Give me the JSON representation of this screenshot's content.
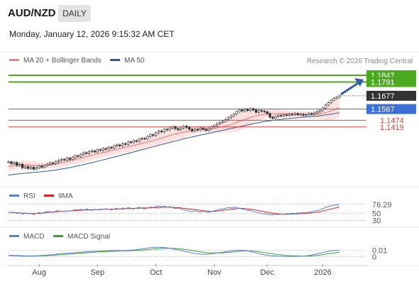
{
  "header": {
    "title": "AUD/NZD",
    "period_badge": "DAILY",
    "datetime": "Monday, January 12, 2026 9:15:32 AM CET"
  },
  "main_legend": {
    "items": [
      {
        "label": "MA 20 + Bollinger Bands",
        "color": "#f08080"
      },
      {
        "label": "MA 50",
        "color": "#2e5a96"
      }
    ],
    "credit": "Research © 2026 Trading Central"
  },
  "rsi_legend": {
    "items": [
      {
        "label": "RSI",
        "color": "#5a7fd4"
      },
      {
        "label": "9MA",
        "color": "#d42020"
      }
    ]
  },
  "macd_legend": {
    "items": [
      {
        "label": "MACD",
        "color": "#5a7fd4"
      },
      {
        "label": "MACD Signal",
        "color": "#3aa032"
      }
    ]
  },
  "chart_data": {
    "type": "candlestick",
    "instrument": "AUD/NZD",
    "timeframe": "DAILY",
    "x_labels": [
      "Aug",
      "Sep",
      "Oct",
      "Nov",
      "Dec",
      "2026"
    ],
    "price_panel": {
      "ylim": [
        1.1,
        1.19
      ],
      "last_price": 1.1677,
      "levels": [
        {
          "value": 1.1847,
          "label": "1.1847",
          "color": "#4caa1e",
          "kind": "resistance-target"
        },
        {
          "value": 1.1791,
          "label": "1.1791",
          "color": "#4caa1e",
          "kind": "resistance"
        },
        {
          "value": 1.1677,
          "label": "1.1677",
          "color": "#333333",
          "kind": "last-price"
        },
        {
          "value": 1.1567,
          "label": "1.1567",
          "color": "#3a6fd8",
          "kind": "pivot"
        },
        {
          "value": 1.1474,
          "label": "1.1474",
          "color": "#e04040",
          "kind": "support"
        },
        {
          "value": 1.1419,
          "label": "1.1419",
          "color": "#e04040",
          "kind": "support"
        }
      ],
      "trend_arrow": "up",
      "close": [
        1.113,
        1.1115,
        1.1125,
        1.11,
        1.111,
        1.108,
        1.109,
        1.1075,
        1.1085,
        1.107,
        1.108,
        1.1095,
        1.1085,
        1.11,
        1.111,
        1.112,
        1.1115,
        1.113,
        1.114,
        1.115,
        1.1145,
        1.116,
        1.115,
        1.1165,
        1.118,
        1.1175,
        1.119,
        1.1205,
        1.12,
        1.1215,
        1.122,
        1.1212,
        1.123,
        1.1225,
        1.124,
        1.1235,
        1.125,
        1.1245,
        1.1262,
        1.127,
        1.1262,
        1.128,
        1.1275,
        1.1295,
        1.129,
        1.1305,
        1.13,
        1.1318,
        1.1325,
        1.132,
        1.134,
        1.1355,
        1.1348,
        1.137,
        1.1385,
        1.1378,
        1.14,
        1.1395,
        1.141,
        1.142,
        1.1405,
        1.1395,
        1.141,
        1.1425,
        1.1415,
        1.14,
        1.1385,
        1.14,
        1.1395,
        1.141,
        1.14,
        1.139,
        1.1405,
        1.142,
        1.143,
        1.1445,
        1.1455,
        1.1465,
        1.148,
        1.1495,
        1.151,
        1.1525,
        1.1545,
        1.156,
        1.155,
        1.1565,
        1.1555,
        1.157,
        1.156,
        1.154,
        1.1555,
        1.155,
        1.1545,
        1.153,
        1.15,
        1.149,
        1.1505,
        1.1515,
        1.151,
        1.152,
        1.1515,
        1.1525,
        1.152,
        1.153,
        1.152,
        1.1525,
        1.1515,
        1.152,
        1.153,
        1.1525,
        1.1535,
        1.1545,
        1.1555,
        1.1575,
        1.16,
        1.162,
        1.164,
        1.1655,
        1.1665,
        1.1677
      ],
      "ma20": [
        1.109,
        1.1095,
        1.11,
        1.1102,
        1.1104,
        1.1105,
        1.1105,
        1.1104,
        1.1102,
        1.11,
        1.1098,
        1.1098,
        1.1099,
        1.11,
        1.1102,
        1.1105,
        1.1108,
        1.1112,
        1.1117,
        1.1122,
        1.1127,
        1.1132,
        1.1138,
        1.1144,
        1.115,
        1.1155,
        1.1161,
        1.1167,
        1.1173,
        1.1179,
        1.1185,
        1.119,
        1.1196,
        1.1201,
        1.1207,
        1.1212,
        1.1218,
        1.1223,
        1.1228,
        1.1234,
        1.1239,
        1.1244,
        1.125,
        1.1255,
        1.1261,
        1.1266,
        1.1272,
        1.1277,
        1.1283,
        1.1289,
        1.1295,
        1.1301,
        1.1307,
        1.1313,
        1.132,
        1.1327,
        1.1334,
        1.1341,
        1.1348,
        1.1355,
        1.136,
        1.1365,
        1.137,
        1.1375,
        1.138,
        1.1384,
        1.1387,
        1.139,
        1.1393,
        1.1396,
        1.1398,
        1.14,
        1.1402,
        1.1405,
        1.1408,
        1.1412,
        1.1416,
        1.1421,
        1.1427,
        1.1433,
        1.144,
        1.1448,
        1.1456,
        1.1465,
        1.1473,
        1.1481,
        1.1489,
        1.1497,
        1.1504,
        1.151,
        1.1515,
        1.152,
        1.1524,
        1.1527,
        1.1528,
        1.1529,
        1.153,
        1.153,
        1.153,
        1.1529,
        1.1528,
        1.1527,
        1.1526,
        1.1525,
        1.1524,
        1.1523,
        1.1522,
        1.1521,
        1.1521,
        1.1521,
        1.1522,
        1.1524,
        1.1527,
        1.1531,
        1.1537,
        1.1544,
        1.1552,
        1.1561,
        1.157,
        1.158
      ],
      "ma50": [
        1.102,
        1.1023,
        1.1026,
        1.1029,
        1.1032,
        1.1034,
        1.1036,
        1.1038,
        1.104,
        1.1042,
        1.1044,
        1.1046,
        1.1048,
        1.105,
        1.1053,
        1.1056,
        1.1059,
        1.1062,
        1.1066,
        1.107,
        1.1074,
        1.1078,
        1.1082,
        1.1087,
        1.1092,
        1.1097,
        1.1102,
        1.1107,
        1.1112,
        1.1118,
        1.1123,
        1.1129,
        1.1135,
        1.114,
        1.1146,
        1.1152,
        1.1158,
        1.1164,
        1.117,
        1.1176,
        1.1182,
        1.1188,
        1.1194,
        1.12,
        1.1206,
        1.1212,
        1.1218,
        1.1224,
        1.123,
        1.1236,
        1.1242,
        1.1248,
        1.1254,
        1.126,
        1.1266,
        1.1272,
        1.1278,
        1.1284,
        1.129,
        1.1296,
        1.1302,
        1.1308,
        1.1314,
        1.132,
        1.1326,
        1.1331,
        1.1336,
        1.1341,
        1.1346,
        1.1351,
        1.1356,
        1.1361,
        1.1366,
        1.1371,
        1.1376,
        1.1381,
        1.1386,
        1.1391,
        1.1396,
        1.1401,
        1.1406,
        1.1411,
        1.1416,
        1.1421,
        1.1426,
        1.1431,
        1.1436,
        1.1441,
        1.1446,
        1.1451,
        1.1455,
        1.1459,
        1.1463,
        1.1467,
        1.147,
        1.1473,
        1.1476,
        1.1479,
        1.1482,
        1.1485,
        1.1487,
        1.1489,
        1.1491,
        1.1493,
        1.1495,
        1.1497,
        1.1499,
        1.1501,
        1.1503,
        1.1505,
        1.1507,
        1.1509,
        1.1512,
        1.1515,
        1.1518,
        1.1521,
        1.1525,
        1.1529,
        1.1533,
        1.1537
      ]
    },
    "rsi_panel": {
      "ylim": [
        25,
        80
      ],
      "levels": [
        {
          "value": 76.29,
          "label": "76.29"
        },
        {
          "value": 50,
          "label": "50"
        },
        {
          "value": 30,
          "label": "30"
        }
      ],
      "rsi": [
        55,
        52,
        54,
        50,
        53,
        48,
        52,
        49,
        51,
        47,
        50,
        53,
        51,
        54,
        56,
        55,
        53,
        57,
        58,
        56,
        55,
        58,
        57,
        59,
        61,
        60,
        62,
        60,
        63,
        61,
        59,
        62,
        60,
        63,
        61,
        64,
        62,
        60,
        63,
        65,
        62,
        66,
        64,
        67,
        65,
        63,
        66,
        68,
        65,
        63,
        66,
        69,
        67,
        70,
        72,
        69,
        71,
        68,
        70,
        67,
        64,
        66,
        63,
        61,
        59,
        57,
        55,
        58,
        56,
        54,
        57,
        55,
        53,
        56,
        58,
        60,
        62,
        63,
        65,
        67,
        66,
        68,
        67,
        65,
        63,
        61,
        59,
        58,
        56,
        54,
        52,
        50,
        49,
        48,
        47,
        46,
        48,
        47,
        49,
        48,
        50,
        49,
        51,
        50,
        52,
        51,
        53,
        52,
        54,
        55,
        57,
        59,
        61,
        64,
        67,
        70,
        72,
        74,
        75,
        76.29
      ],
      "ma9": [
        54,
        53,
        53,
        52,
        52,
        51,
        51,
        50,
        50,
        50,
        50,
        51,
        51,
        52,
        53,
        54,
        54,
        55,
        56,
        56,
        56,
        57,
        57,
        58,
        58,
        59,
        59,
        60,
        60,
        60,
        61,
        61,
        61,
        61,
        62,
        62,
        62,
        62,
        62,
        63,
        63,
        63,
        64,
        64,
        64,
        65,
        65,
        65,
        66,
        66,
        66,
        66,
        67,
        67,
        67,
        68,
        68,
        68,
        68,
        68,
        67,
        67,
        66,
        65,
        64,
        63,
        62,
        61,
        60,
        59,
        58,
        57,
        57,
        56,
        56,
        57,
        58,
        59,
        60,
        61,
        62,
        63,
        64,
        65,
        65,
        64,
        63,
        62,
        61,
        60,
        58,
        57,
        55,
        54,
        52,
        51,
        50,
        49,
        48,
        48,
        48,
        48,
        49,
        49,
        49,
        50,
        50,
        51,
        51,
        52,
        53,
        54,
        55,
        57,
        59,
        61,
        63,
        65,
        67,
        69
      ]
    },
    "macd_panel": {
      "ylim": [
        -0.004,
        0.006
      ],
      "levels": [
        {
          "value": 0.01,
          "label": "0.01"
        },
        {
          "value": 0,
          "label": "0"
        }
      ],
      "macd": [
        0.0002,
        0.0001,
        0.0001,
        0.0,
        0.0,
        -0.0001,
        -0.0001,
        -0.0001,
        -0.0001,
        -0.0001,
        0.0,
        0.0001,
        0.0002,
        0.0003,
        0.0004,
        0.0005,
        0.0006,
        0.0008,
        0.001,
        0.0011,
        0.0012,
        0.0013,
        0.0014,
        0.0015,
        0.0016,
        0.0017,
        0.0018,
        0.0019,
        0.002,
        0.0021,
        0.0022,
        0.0022,
        0.0023,
        0.0023,
        0.0024,
        0.0024,
        0.0025,
        0.0025,
        0.0026,
        0.0026,
        0.0025,
        0.0025,
        0.0026,
        0.0027,
        0.0028,
        0.0029,
        0.003,
        0.0032,
        0.0034,
        0.0036,
        0.0038,
        0.004,
        0.0041,
        0.0042,
        0.0042,
        0.0041,
        0.004,
        0.0039,
        0.0037,
        0.0035,
        0.0032,
        0.0029,
        0.0026,
        0.0023,
        0.002,
        0.0017,
        0.0014,
        0.0012,
        0.001,
        0.0009,
        0.0008,
        0.0008,
        0.0009,
        0.001,
        0.0012,
        0.0014,
        0.0016,
        0.0018,
        0.002,
        0.0022,
        0.0024,
        0.0026,
        0.0027,
        0.0028,
        0.0027,
        0.0026,
        0.0024,
        0.0021,
        0.0018,
        0.0015,
        0.0011,
        0.0008,
        0.0005,
        0.0003,
        0.0001,
        0.0,
        -0.0001,
        -0.0002,
        -0.0002,
        -0.0003,
        -0.0003,
        -0.0003,
        -0.0003,
        -0.0002,
        -0.0002,
        -0.0002,
        -0.0001,
        0.0,
        0.0002,
        0.0004,
        0.0007,
        0.001,
        0.0013,
        0.0016,
        0.0019,
        0.0022,
        0.0024,
        0.0026,
        0.0027,
        0.0028
      ],
      "signal": [
        0.0003,
        0.0003,
        0.0002,
        0.0002,
        0.0001,
        0.0001,
        0.0,
        0.0,
        0.0,
        0.0,
        0.0,
        0.0,
        0.0,
        0.0001,
        0.0001,
        0.0002,
        0.0003,
        0.0004,
        0.0005,
        0.0006,
        0.0007,
        0.0008,
        0.0009,
        0.001,
        0.0011,
        0.0012,
        0.0013,
        0.0014,
        0.0015,
        0.0016,
        0.0017,
        0.0018,
        0.0019,
        0.002,
        0.002,
        0.0021,
        0.0022,
        0.0022,
        0.0023,
        0.0023,
        0.0024,
        0.0024,
        0.0024,
        0.0025,
        0.0025,
        0.0026,
        0.0026,
        0.0027,
        0.0028,
        0.0029,
        0.003,
        0.0032,
        0.0033,
        0.0034,
        0.0035,
        0.0036,
        0.0037,
        0.0037,
        0.0037,
        0.0037,
        0.0036,
        0.0035,
        0.0034,
        0.0032,
        0.003,
        0.0028,
        0.0026,
        0.0024,
        0.0022,
        0.002,
        0.0018,
        0.0016,
        0.0015,
        0.0014,
        0.0014,
        0.0014,
        0.0014,
        0.0015,
        0.0016,
        0.0017,
        0.0018,
        0.0019,
        0.0021,
        0.0022,
        0.0023,
        0.0024,
        0.0024,
        0.0024,
        0.0023,
        0.0022,
        0.002,
        0.0018,
        0.0016,
        0.0014,
        0.0012,
        0.001,
        0.0008,
        0.0006,
        0.0005,
        0.0003,
        0.0002,
        0.0001,
        0.0001,
        0.0,
        0.0,
        -0.0001,
        -0.0001,
        -0.0001,
        -0.0001,
        0.0,
        0.0001,
        0.0002,
        0.0004,
        0.0006,
        0.0008,
        0.001,
        0.0012,
        0.0014,
        0.0016,
        0.0018
      ]
    }
  }
}
